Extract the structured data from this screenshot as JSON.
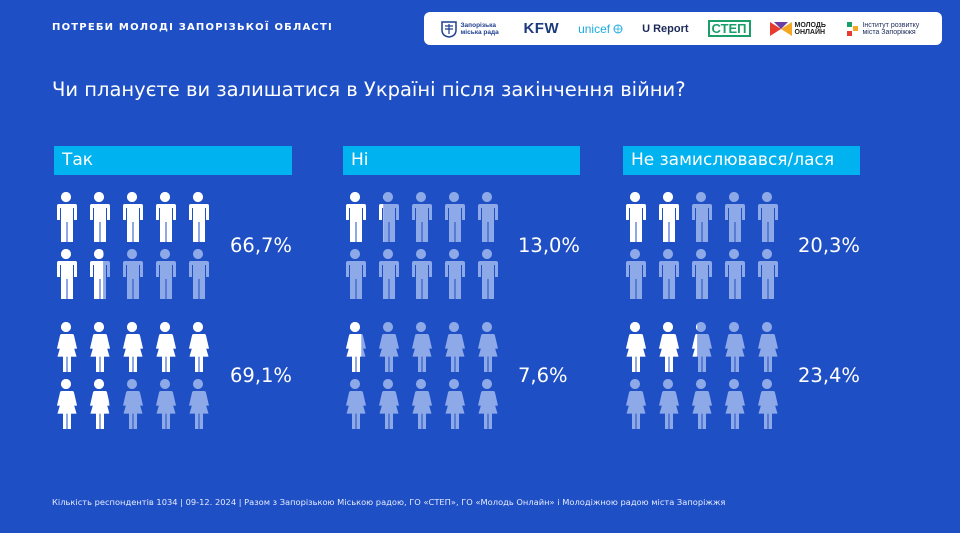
{
  "header": {
    "title": "ПОТРЕБИ МОЛОДІ ЗАПОРІЗЬКОЇ ОБЛАСТІ"
  },
  "logos": [
    {
      "name": "zaporizka-miska-rada",
      "text": "Запорізька міська рада"
    },
    {
      "name": "kfw",
      "text": "KFW"
    },
    {
      "name": "unicef",
      "text": "unicef"
    },
    {
      "name": "ureport",
      "text": "U Report"
    },
    {
      "name": "step",
      "text": "СТЕП"
    },
    {
      "name": "molod-online",
      "text": "МОЛОДЬ ОНЛАЙН"
    },
    {
      "name": "instytut-rozvytku",
      "text": "Інститут розвитку міста Запоріжжя"
    }
  ],
  "chart_data": {
    "type": "pictogram",
    "title": "Чи плануєте ви залишатися в Україні після закінчення війни?",
    "categories": [
      "Так",
      "Ні",
      "Не замислювався/лася"
    ],
    "series": [
      {
        "name": "male",
        "values": [
          66.7,
          13.0,
          20.3
        ],
        "labels": [
          "66,7%",
          "13,0%",
          "20,3%"
        ]
      },
      {
        "name": "female",
        "values": [
          69.1,
          7.6,
          23.4
        ],
        "labels": [
          "69,1%",
          "7,6%",
          "23,4%"
        ]
      }
    ],
    "icons_per_group": 10,
    "colors": {
      "filled": "#ffffff",
      "empty": "#8ea9e8",
      "label_bg": "#00b2ef",
      "background": "#1f4fc4"
    }
  },
  "footer": {
    "text": "Кількість респондентів 1034 | 09-12. 2024 | Разом з Запорізькою Міською радою, ГО «СТЕП», ГО «Молодь Онлайн» і Молодіжною радою міста Запоріжжя"
  }
}
